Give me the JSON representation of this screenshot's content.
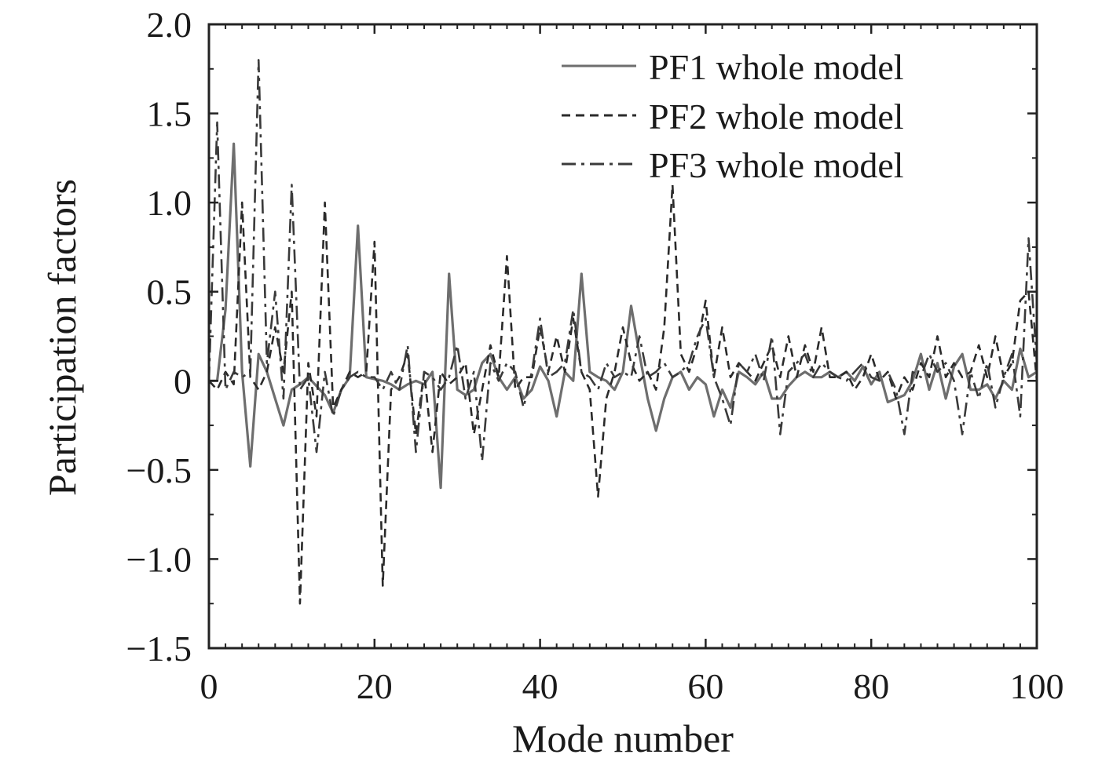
{
  "chart_data": {
    "type": "line",
    "title": "",
    "xlabel": "Mode number",
    "ylabel": "Participation factors",
    "xlim": [
      0,
      100
    ],
    "ylim": [
      -1.5,
      2.0
    ],
    "xticks": [
      0,
      20,
      40,
      60,
      80,
      100
    ],
    "xtick_labels": [
      "0",
      "20",
      "40",
      "60",
      "80",
      "100"
    ],
    "yticks": [
      2.0,
      1.5,
      1.0,
      0.5,
      0,
      -0.5,
      -1.0,
      -1.5
    ],
    "ytick_labels": [
      "2.0",
      "1.5",
      "1.0",
      "0.5",
      "0",
      "−0.5",
      "−1.0",
      "−1.5"
    ],
    "grid": false,
    "legend_position": "top-right",
    "series": [
      {
        "name": "PF1 whole model",
        "style": "solid",
        "color": "#6e6e6e",
        "x": [
          0,
          1,
          2,
          3,
          4,
          5,
          6,
          7,
          8,
          9,
          10,
          11,
          12,
          13,
          14,
          15,
          16,
          17,
          18,
          19,
          20,
          21,
          22,
          23,
          24,
          25,
          26,
          27,
          28,
          29,
          30,
          31,
          32,
          33,
          34,
          35,
          36,
          37,
          38,
          39,
          40,
          41,
          42,
          43,
          44,
          45,
          46,
          47,
          48,
          49,
          50,
          51,
          52,
          53,
          54,
          55,
          56,
          57,
          58,
          59,
          60,
          61,
          62,
          63,
          64,
          65,
          66,
          67,
          68,
          69,
          70,
          71,
          72,
          73,
          74,
          75,
          76,
          77,
          78,
          79,
          80,
          81,
          82,
          83,
          84,
          85,
          86,
          87,
          88,
          89,
          90,
          91,
          92,
          93,
          94,
          95,
          96,
          97,
          98,
          99,
          100
        ],
        "values": [
          0,
          0,
          0.4,
          1.33,
          0.05,
          -0.48,
          0.15,
          0.05,
          -0.1,
          -0.25,
          -0.05,
          -0.02,
          0.02,
          -0.03,
          -0.08,
          -0.18,
          -0.05,
          0.02,
          0.87,
          0.02,
          0.01,
          0.0,
          -0.02,
          -0.05,
          -0.02,
          0.0,
          -0.02,
          0.05,
          -0.6,
          0.6,
          -0.05,
          -0.08,
          -0.05,
          0.1,
          0.15,
          0.02,
          -0.05,
          0.02,
          -0.1,
          -0.05,
          0.08,
          0.0,
          -0.2,
          0.05,
          0.0,
          0.6,
          0.05,
          0.02,
          0.0,
          -0.05,
          0.05,
          0.42,
          0.15,
          -0.1,
          -0.28,
          -0.1,
          0.02,
          0.05,
          -0.05,
          0.02,
          -0.02,
          -0.2,
          -0.05,
          -0.15,
          0.05,
          0.02,
          -0.02,
          0.05,
          -0.1,
          -0.1,
          -0.03,
          0.02,
          0.05,
          0.02,
          0.02,
          0.05,
          0.02,
          0.05,
          0.0,
          0.08,
          -0.02,
          0.05,
          -0.12,
          -0.1,
          -0.08,
          0.0,
          0.15,
          -0.05,
          0.1,
          -0.1,
          0.08,
          0.15,
          -0.05,
          -0.05,
          -0.02,
          -0.1,
          0.0,
          -0.05,
          0.18,
          0.02,
          0.05
        ]
      },
      {
        "name": "PF2 whole model",
        "style": "dashed",
        "color": "#2a2a2a",
        "x": [
          0,
          1,
          2,
          3,
          4,
          5,
          6,
          7,
          8,
          9,
          10,
          11,
          12,
          13,
          14,
          15,
          16,
          17,
          18,
          19,
          20,
          21,
          22,
          23,
          24,
          25,
          26,
          27,
          28,
          29,
          30,
          31,
          32,
          33,
          34,
          35,
          36,
          37,
          38,
          39,
          40,
          41,
          42,
          43,
          44,
          45,
          46,
          47,
          48,
          49,
          50,
          51,
          52,
          53,
          54,
          55,
          56,
          57,
          58,
          59,
          60,
          61,
          62,
          63,
          64,
          65,
          66,
          67,
          68,
          69,
          70,
          71,
          72,
          73,
          74,
          75,
          76,
          77,
          78,
          79,
          80,
          81,
          82,
          83,
          84,
          85,
          86,
          87,
          88,
          89,
          90,
          91,
          92,
          93,
          94,
          95,
          96,
          97,
          98,
          99,
          100
        ],
        "values": [
          0,
          -0.05,
          0.05,
          -0.02,
          1.0,
          0.02,
          -0.05,
          0.05,
          0.3,
          0.05,
          0.5,
          -1.25,
          0.1,
          -0.2,
          1.0,
          -0.15,
          -0.05,
          0.05,
          0.02,
          0.05,
          0.78,
          -1.15,
          -0.05,
          0.02,
          0.15,
          -0.3,
          0.05,
          -0.4,
          0.05,
          -0.02,
          0.02,
          0.1,
          -0.3,
          -0.05,
          0.2,
          0.02,
          0.7,
          -0.05,
          0.02,
          0.02,
          0.3,
          0.05,
          0.25,
          0.05,
          0.35,
          0.05,
          -0.05,
          -0.65,
          -0.1,
          0.05,
          0.3,
          0.1,
          0.0,
          0.05,
          -0.05,
          0.3,
          1.1,
          0.15,
          0.05,
          0.2,
          0.45,
          0.02,
          0.3,
          0.02,
          0.1,
          0.05,
          0.0,
          0.1,
          0.2,
          0.02,
          0.25,
          0.02,
          0.2,
          0.05,
          0.3,
          0.02,
          0.02,
          0.05,
          -0.05,
          0.02,
          0.15,
          0.0,
          0.05,
          -0.1,
          0.02,
          -0.05,
          0.1,
          0.02,
          0.25,
          0.02,
          0.1,
          0.02,
          0.05,
          0.2,
          0.02,
          0.25,
          0.02,
          0.1,
          0.45,
          0.5,
          0.0
        ]
      },
      {
        "name": "PF3 whole model",
        "style": "dash-dot",
        "color": "#3a3a3a",
        "x": [
          0,
          1,
          2,
          3,
          4,
          5,
          6,
          7,
          8,
          9,
          10,
          11,
          12,
          13,
          14,
          15,
          16,
          17,
          18,
          19,
          20,
          21,
          22,
          23,
          24,
          25,
          26,
          27,
          28,
          29,
          30,
          31,
          32,
          33,
          34,
          35,
          36,
          37,
          38,
          39,
          40,
          41,
          42,
          43,
          44,
          45,
          46,
          47,
          48,
          49,
          50,
          51,
          52,
          53,
          54,
          55,
          56,
          57,
          58,
          59,
          60,
          61,
          62,
          63,
          64,
          65,
          66,
          67,
          68,
          69,
          70,
          71,
          72,
          73,
          74,
          75,
          76,
          77,
          78,
          79,
          80,
          81,
          82,
          83,
          84,
          85,
          86,
          87,
          88,
          89,
          90,
          91,
          92,
          93,
          94,
          95,
          96,
          97,
          98,
          99,
          100
        ],
        "values": [
          0,
          1.45,
          -0.05,
          0.05,
          0.02,
          0.05,
          1.8,
          0.1,
          0.5,
          -0.1,
          1.1,
          -0.05,
          0.02,
          -0.4,
          0.05,
          -0.2,
          -0.05,
          0.02,
          0.05,
          0.02,
          0.02,
          -0.05,
          0.05,
          -0.05,
          0.2,
          -0.4,
          0.05,
          0.02,
          -0.05,
          0.02,
          0.2,
          -0.1,
          0.05,
          -0.45,
          0.1,
          0.0,
          0.1,
          0.05,
          -0.15,
          0.05,
          0.35,
          0.02,
          0.05,
          0.1,
          0.4,
          0.05,
          0.02,
          -0.05,
          0.1,
          0.02,
          0.05,
          0.02,
          0.25,
          0.02,
          0.05,
          0.1,
          0.02,
          0.05,
          0.1,
          0.25,
          0.35,
          0.02,
          -0.1,
          -0.25,
          0.1,
          0.05,
          0.15,
          0.0,
          0.25,
          -0.3,
          0.05,
          0.1,
          0.15,
          0.02,
          0.1,
          0.05,
          0.02,
          0.0,
          0.05,
          0.1,
          0.02,
          0.0,
          0.05,
          -0.05,
          -0.3,
          0.05,
          0.02,
          0.15,
          0.05,
          0.1,
          0.0,
          -0.3,
          0.05,
          -0.1,
          0.1,
          -0.15,
          0.02,
          0.15,
          -0.2,
          0.8,
          0.1
        ]
      }
    ]
  }
}
